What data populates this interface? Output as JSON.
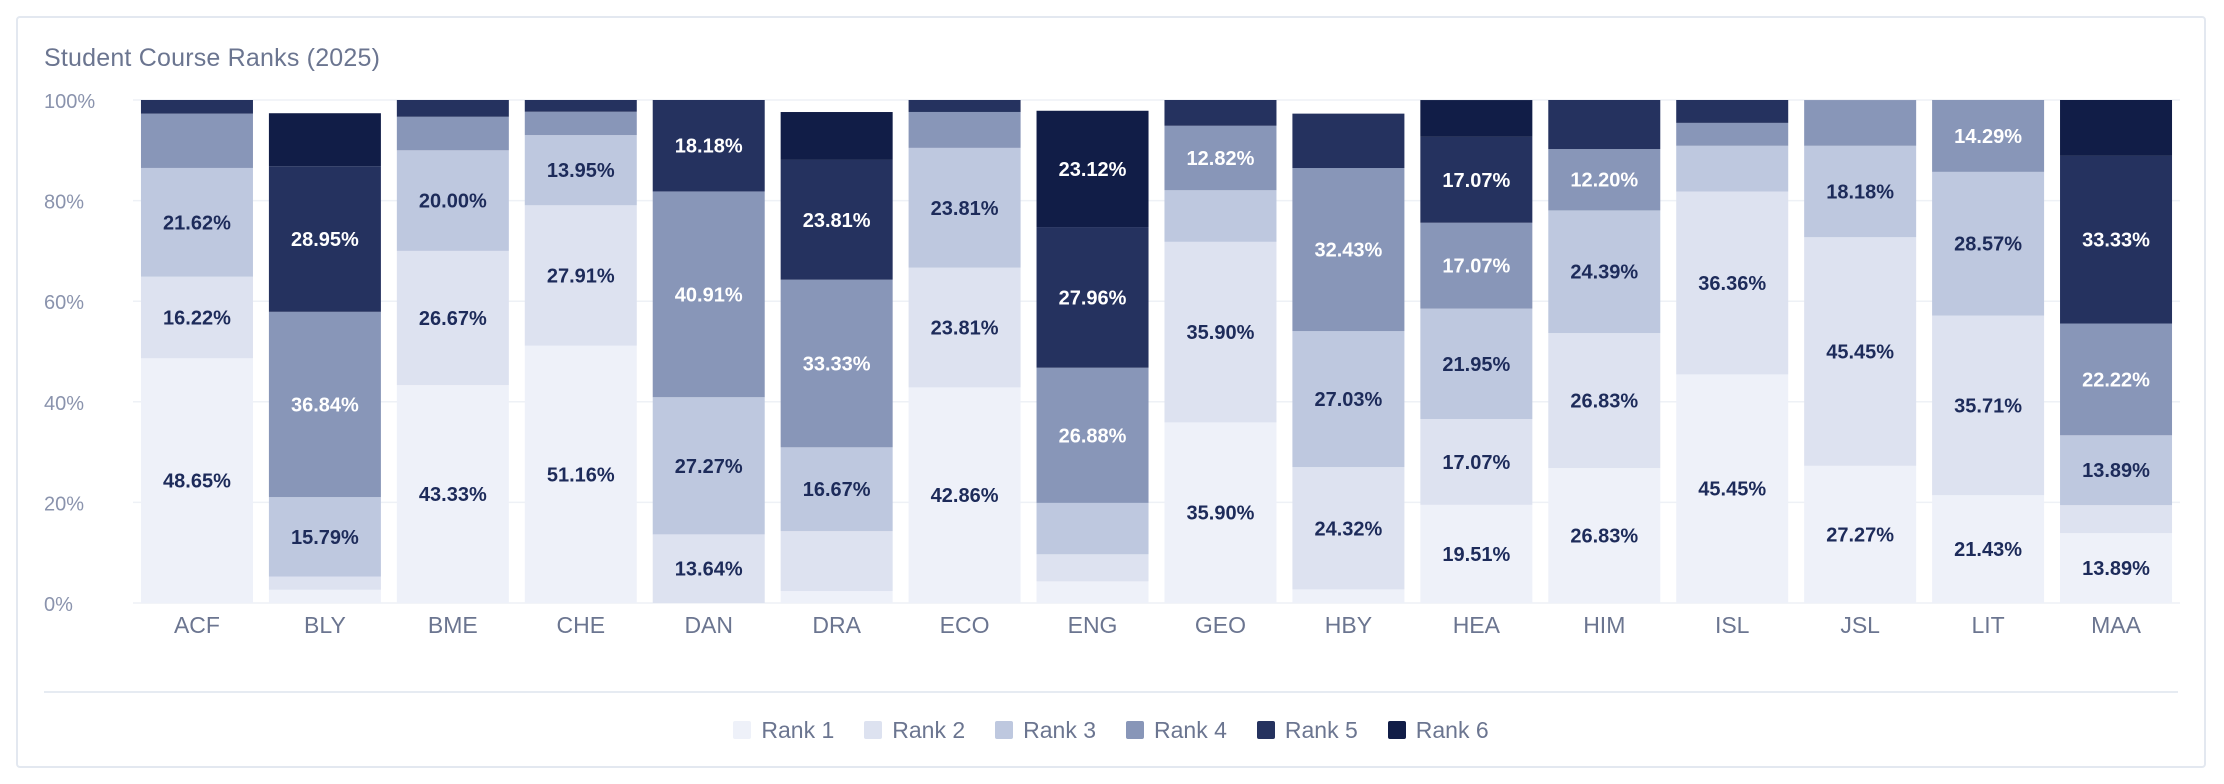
{
  "chart_data": {
    "type": "bar",
    "stacked": true,
    "percent_stacked": true,
    "title": "Student Course Ranks (2025)",
    "xlabel": "",
    "ylabel": "",
    "ylim": [
      0,
      100
    ],
    "y_ticks": [
      "0%",
      "20%",
      "40%",
      "60%",
      "80%",
      "100%"
    ],
    "grid": true,
    "legend_position": "bottom",
    "categories": [
      "ACF",
      "BLY",
      "BME",
      "CHE",
      "DAN",
      "DRA",
      "ECO",
      "ENG",
      "GEO",
      "HBY",
      "HEA",
      "HIM",
      "ISL",
      "JSL",
      "LIT",
      "MAA"
    ],
    "series": [
      {
        "name": "Rank 1",
        "color": "#eef1f9",
        "values": [
          48.65,
          2.63,
          43.33,
          51.16,
          0.0,
          2.38,
          42.86,
          4.3,
          35.9,
          2.7,
          19.51,
          26.83,
          45.45,
          27.27,
          21.43,
          13.89
        ]
      },
      {
        "name": "Rank 2",
        "color": "#dde2f0",
        "values": [
          16.22,
          2.63,
          26.67,
          27.91,
          13.64,
          11.9,
          23.81,
          5.38,
          35.9,
          24.32,
          17.07,
          26.83,
          36.36,
          45.45,
          35.71,
          5.56
        ]
      },
      {
        "name": "Rank 3",
        "color": "#bec8df",
        "values": [
          21.62,
          15.79,
          20.0,
          13.95,
          27.27,
          16.67,
          23.81,
          10.22,
          10.26,
          27.03,
          21.95,
          24.39,
          9.09,
          18.18,
          28.57,
          13.89
        ]
      },
      {
        "name": "Rank 4",
        "color": "#8896b8",
        "values": [
          10.81,
          36.84,
          6.67,
          4.65,
          40.91,
          33.33,
          7.14,
          26.88,
          12.82,
          32.43,
          17.07,
          12.2,
          4.55,
          9.09,
          14.29,
          22.22
        ]
      },
      {
        "name": "Rank 5",
        "color": "#25325f",
        "values": [
          2.7,
          28.95,
          3.33,
          2.33,
          18.18,
          23.81,
          2.38,
          27.96,
          5.13,
          10.81,
          17.07,
          9.76,
          4.55,
          0.0,
          0.0,
          33.33
        ]
      },
      {
        "name": "Rank 6",
        "color": "#111d47",
        "values": [
          0.0,
          10.53,
          0.0,
          0.0,
          0.0,
          9.52,
          0.0,
          23.12,
          0.0,
          0.0,
          7.32,
          0.0,
          0.0,
          0.0,
          0.0,
          11.11
        ]
      }
    ],
    "data_labels": [
      {
        "category": "ACF",
        "series": "Rank 1",
        "text": "48.65%"
      },
      {
        "category": "ACF",
        "series": "Rank 2",
        "text": "16.22%"
      },
      {
        "category": "ACF",
        "series": "Rank 3",
        "text": "21.62%"
      },
      {
        "category": "BLY",
        "series": "Rank 3",
        "text": "15.79%"
      },
      {
        "category": "BLY",
        "series": "Rank 4",
        "text": "36.84%"
      },
      {
        "category": "BLY",
        "series": "Rank 5",
        "text": "28.95%"
      },
      {
        "category": "BME",
        "series": "Rank 1",
        "text": "43.33%"
      },
      {
        "category": "BME",
        "series": "Rank 2",
        "text": "26.67%"
      },
      {
        "category": "BME",
        "series": "Rank 3",
        "text": "20.00%"
      },
      {
        "category": "CHE",
        "series": "Rank 1",
        "text": "51.16%"
      },
      {
        "category": "CHE",
        "series": "Rank 2",
        "text": "27.91%"
      },
      {
        "category": "CHE",
        "series": "Rank 3",
        "text": "13.95%"
      },
      {
        "category": "DAN",
        "series": "Rank 2",
        "text": "13.64%"
      },
      {
        "category": "DAN",
        "series": "Rank 3",
        "text": "27.27%"
      },
      {
        "category": "DAN",
        "series": "Rank 4",
        "text": "40.91%"
      },
      {
        "category": "DAN",
        "series": "Rank 5",
        "text": "18.18%"
      },
      {
        "category": "DRA",
        "series": "Rank 3",
        "text": "16.67%"
      },
      {
        "category": "DRA",
        "series": "Rank 4",
        "text": "33.33%"
      },
      {
        "category": "DRA",
        "series": "Rank 5",
        "text": "23.81%"
      },
      {
        "category": "ECO",
        "series": "Rank 1",
        "text": "42.86%"
      },
      {
        "category": "ECO",
        "series": "Rank 2",
        "text": "23.81%"
      },
      {
        "category": "ECO",
        "series": "Rank 3",
        "text": "23.81%"
      },
      {
        "category": "ENG",
        "series": "Rank 4",
        "text": "26.88%"
      },
      {
        "category": "ENG",
        "series": "Rank 5",
        "text": "27.96%"
      },
      {
        "category": "ENG",
        "series": "Rank 6",
        "text": "23.12%"
      },
      {
        "category": "GEO",
        "series": "Rank 1",
        "text": "35.90%"
      },
      {
        "category": "GEO",
        "series": "Rank 2",
        "text": "35.90%"
      },
      {
        "category": "GEO",
        "series": "Rank 4",
        "text": "12.82%"
      },
      {
        "category": "HBY",
        "series": "Rank 2",
        "text": "24.32%"
      },
      {
        "category": "HBY",
        "series": "Rank 3",
        "text": "27.03%"
      },
      {
        "category": "HBY",
        "series": "Rank 4",
        "text": "32.43%"
      },
      {
        "category": "HEA",
        "series": "Rank 1",
        "text": "19.51%"
      },
      {
        "category": "HEA",
        "series": "Rank 2",
        "text": "17.07%"
      },
      {
        "category": "HEA",
        "series": "Rank 3",
        "text": "21.95%"
      },
      {
        "category": "HEA",
        "series": "Rank 4",
        "text": "17.07%"
      },
      {
        "category": "HEA",
        "series": "Rank 5",
        "text": "17.07%"
      },
      {
        "category": "HIM",
        "series": "Rank 1",
        "text": "26.83%"
      },
      {
        "category": "HIM",
        "series": "Rank 2",
        "text": "26.83%"
      },
      {
        "category": "HIM",
        "series": "Rank 3",
        "text": "24.39%"
      },
      {
        "category": "HIM",
        "series": "Rank 4",
        "text": "12.20%"
      },
      {
        "category": "ISL",
        "series": "Rank 1",
        "text": "45.45%"
      },
      {
        "category": "ISL",
        "series": "Rank 2",
        "text": "36.36%"
      },
      {
        "category": "JSL",
        "series": "Rank 1",
        "text": "27.27%"
      },
      {
        "category": "JSL",
        "series": "Rank 2",
        "text": "45.45%"
      },
      {
        "category": "JSL",
        "series": "Rank 3",
        "text": "18.18%"
      },
      {
        "category": "LIT",
        "series": "Rank 1",
        "text": "21.43%"
      },
      {
        "category": "LIT",
        "series": "Rank 2",
        "text": "35.71%"
      },
      {
        "category": "LIT",
        "series": "Rank 3",
        "text": "28.57%"
      },
      {
        "category": "LIT",
        "series": "Rank 4",
        "text": "14.29%"
      },
      {
        "category": "MAA",
        "series": "Rank 1",
        "text": "13.89%"
      },
      {
        "category": "MAA",
        "series": "Rank 3",
        "text": "13.89%"
      },
      {
        "category": "MAA",
        "series": "Rank 4",
        "text": "22.22%"
      },
      {
        "category": "MAA",
        "series": "Rank 5",
        "text": "33.33%"
      }
    ]
  }
}
